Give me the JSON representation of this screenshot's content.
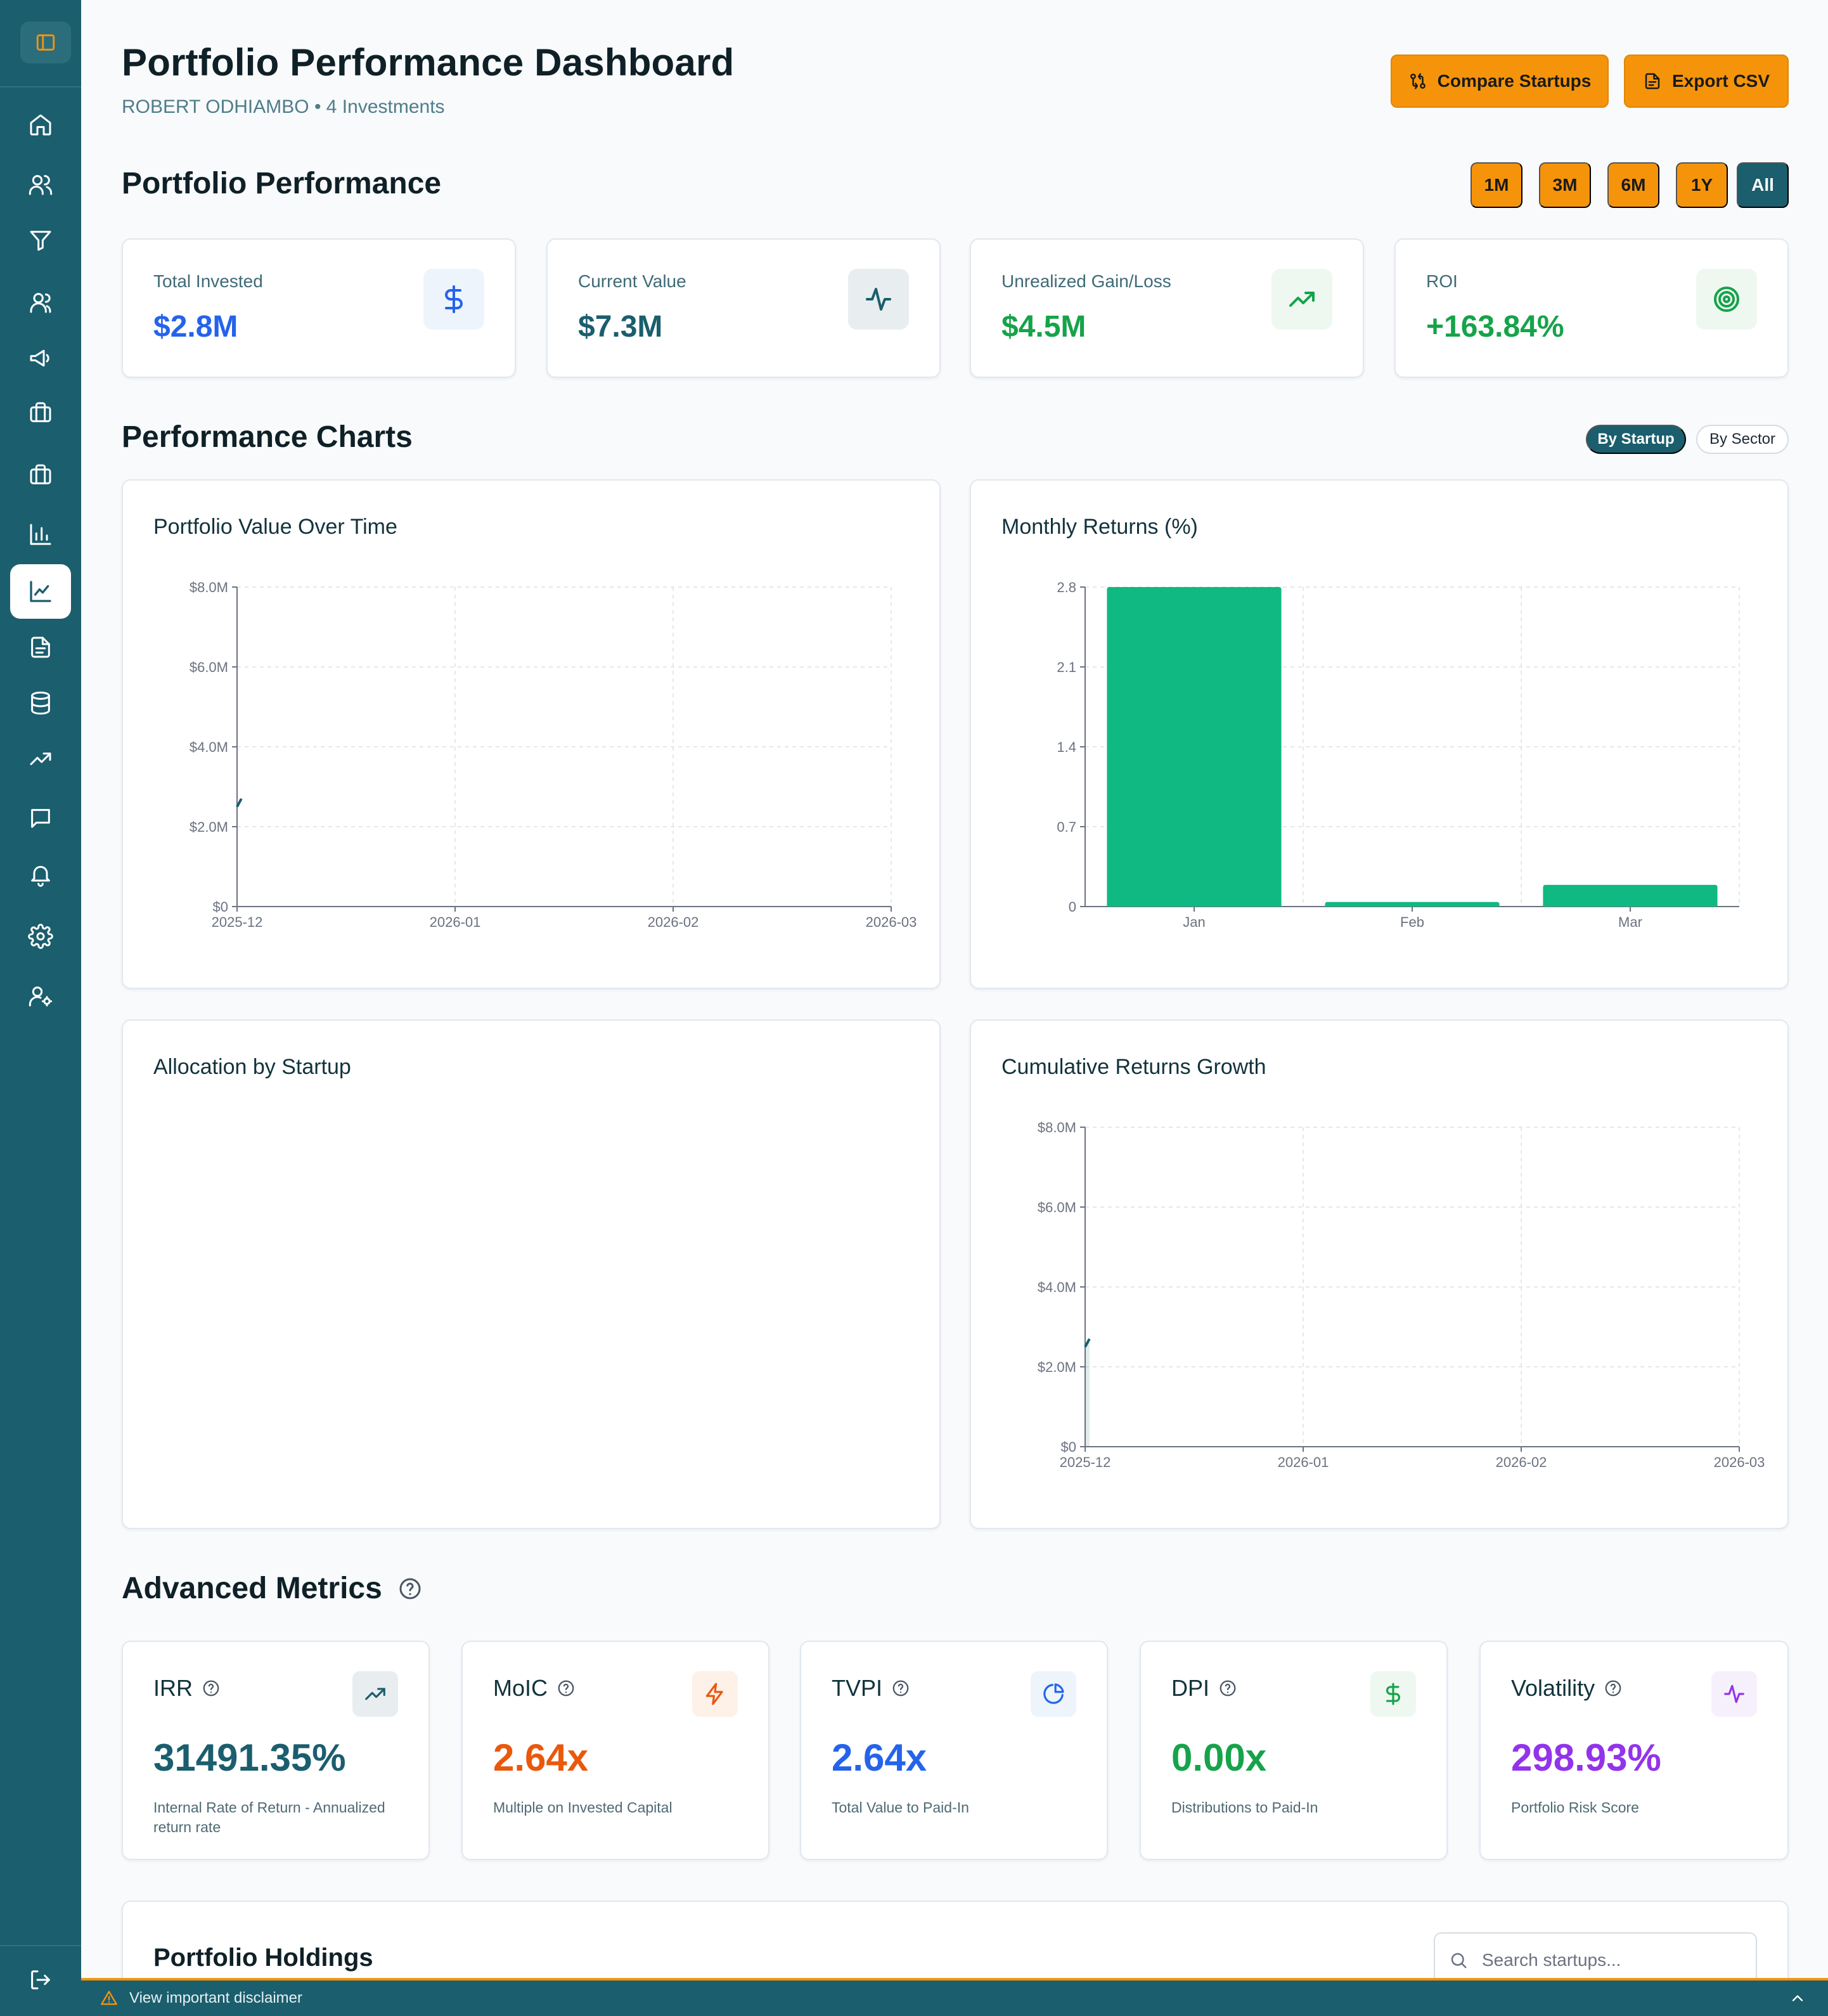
{
  "sidebar": {
    "toggle_icon": "panel-left-icon",
    "items": [
      {
        "icon": "home-icon"
      },
      {
        "icon": "users-icon"
      },
      {
        "icon": "filter-icon"
      },
      {
        "icon": "user-group-icon"
      },
      {
        "icon": "megaphone-icon"
      },
      {
        "icon": "briefcase-icon"
      },
      {
        "icon": "briefcase-alt-icon"
      },
      {
        "icon": "bar-chart-icon"
      },
      {
        "icon": "line-chart-icon",
        "active": true
      },
      {
        "icon": "document-icon"
      },
      {
        "icon": "database-icon"
      },
      {
        "icon": "trending-up-icon"
      },
      {
        "icon": "message-icon"
      },
      {
        "icon": "bell-icon"
      },
      {
        "icon": "settings-icon"
      },
      {
        "icon": "user-settings-icon"
      }
    ],
    "logout_icon": "logout-icon"
  },
  "header": {
    "title": "Portfolio Performance Dashboard",
    "subtitle": "ROBERT ODHIAMBO • 4 Investments",
    "compare_label": "Compare Startups",
    "export_label": "Export CSV"
  },
  "performance": {
    "title": "Portfolio Performance",
    "periods": [
      "1M",
      "3M",
      "6M",
      "1Y",
      "All"
    ],
    "active_period": "All"
  },
  "kpis": [
    {
      "label": "Total Invested",
      "value": "$2.8M",
      "color": "#2563eb",
      "icon": "dollar-icon",
      "icon_bg": "#eef4fb"
    },
    {
      "label": "Current Value",
      "value": "$7.3M",
      "color": "#1b5e6e",
      "icon": "activity-icon",
      "icon_bg": "#e8eef0"
    },
    {
      "label": "Unrealized Gain/Loss",
      "value": "$4.5M",
      "color": "#16a34a",
      "icon": "trending-up-icon",
      "icon_bg": "#eef8f0"
    },
    {
      "label": "ROI",
      "value": "+163.84%",
      "color": "#16a34a",
      "icon": "target-icon",
      "icon_bg": "#eef8f0"
    }
  ],
  "charts_section": {
    "title": "Performance Charts",
    "toggle": [
      "By Startup",
      "By Sector"
    ],
    "active_toggle": "By Startup"
  },
  "chart_data": [
    {
      "type": "line",
      "title": "Portfolio Value Over Time",
      "x_ticks": [
        "2025-12",
        "2026-01",
        "2026-02",
        "2026-03"
      ],
      "y_ticks": [
        "$0",
        "$2.0M",
        "$4.0M",
        "$6.0M",
        "$8.0M"
      ],
      "ylim": [
        0,
        8000000
      ],
      "series": [
        {
          "x": [
            0,
            0.02
          ],
          "y": [
            2500000,
            2700000
          ]
        }
      ],
      "grid": true
    },
    {
      "type": "bar",
      "title": "Monthly Returns (%)",
      "categories": [
        "Jan",
        "Feb",
        "Mar"
      ],
      "values": [
        2.8,
        0.04,
        0.19
      ],
      "y_ticks": [
        "0",
        "0.7",
        "1.4",
        "2.1",
        "2.8"
      ],
      "ylim": [
        0,
        2.8
      ],
      "color": "#10b981",
      "grid": true
    },
    {
      "type": "pie",
      "title": "Allocation by Startup",
      "values": []
    },
    {
      "type": "area",
      "title": "Cumulative Returns Growth",
      "x_ticks": [
        "2025-12",
        "2026-01",
        "2026-02",
        "2026-03"
      ],
      "y_ticks": [
        "$0",
        "$2.0M",
        "$4.0M",
        "$6.0M",
        "$8.0M"
      ],
      "ylim": [
        0,
        8000000
      ],
      "series": [
        {
          "x": [
            0,
            0.02
          ],
          "y": [
            2500000,
            2700000
          ]
        }
      ],
      "grid": true
    }
  ],
  "advanced": {
    "title": "Advanced Metrics",
    "metrics": [
      {
        "label": "IRR",
        "value": "31491.35%",
        "desc": "Internal Rate of Return - Annualized return rate",
        "color": "#1b5e6e",
        "icon": "trending-up-icon",
        "icon_bg": "#e8eef0"
      },
      {
        "label": "MoIC",
        "value": "2.64x",
        "desc": "Multiple on Invested Capital",
        "color": "#ea580c",
        "icon": "lightning-icon",
        "icon_bg": "#fdf1e8"
      },
      {
        "label": "TVPI",
        "value": "2.64x",
        "desc": "Total Value to Paid-In",
        "color": "#2563eb",
        "icon": "pie-chart-icon",
        "icon_bg": "#eef4fb"
      },
      {
        "label": "DPI",
        "value": "0.00x",
        "desc": "Distributions to Paid-In",
        "color": "#16a34a",
        "icon": "dollar-icon",
        "icon_bg": "#eef8f0"
      },
      {
        "label": "Volatility",
        "value": "298.93%",
        "desc": "Portfolio Risk Score",
        "color": "#9333ea",
        "icon": "activity-icon",
        "icon_bg": "#f6f0fc"
      }
    ]
  },
  "holdings": {
    "title": "Portfolio Holdings",
    "search_placeholder": "Search startups..."
  },
  "disclaimer": {
    "text": "View important disclaimer"
  }
}
